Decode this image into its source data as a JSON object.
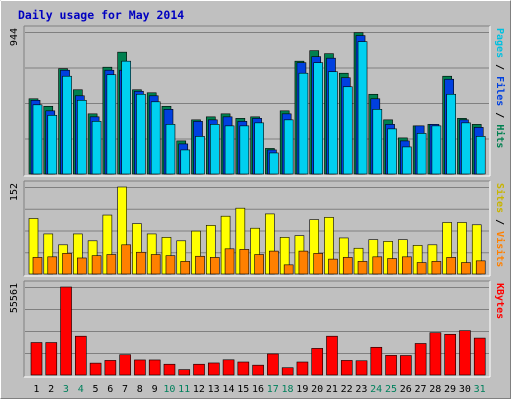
{
  "title": "Daily usage for May 2014",
  "colors": {
    "background": "#c0c0c0",
    "title": "#0000c0",
    "pages": "#00d0f0",
    "files": "#0040e0",
    "hits": "#008050",
    "visits": "#ff8000",
    "sites": "#ffff00",
    "kbytes": "#ff0000",
    "weekend": "#00805c",
    "weekday": "#000000"
  },
  "chart_data": [
    {
      "type": "bar",
      "panel": "hits-files-pages",
      "ymax_label": "944",
      "ylim": [
        0,
        944
      ],
      "axis_label_parts": [
        {
          "text": "Pages",
          "color": "#00c0e0"
        },
        {
          "text": " / ",
          "color": "#000000"
        },
        {
          "text": "Files",
          "color": "#0040e0"
        },
        {
          "text": " / ",
          "color": "#000000"
        },
        {
          "text": "Hits",
          "color": "#008050"
        }
      ],
      "categories": [
        "1",
        "2",
        "3",
        "4",
        "5",
        "6",
        "7",
        "8",
        "9",
        "10",
        "11",
        "12",
        "13",
        "14",
        "15",
        "16",
        "17",
        "18",
        "19",
        "20",
        "21",
        "22",
        "23",
        "24",
        "25",
        "26",
        "27",
        "28",
        "29",
        "30",
        "31"
      ],
      "series": [
        {
          "name": "Hits",
          "values": [
            500,
            450,
            700,
            560,
            400,
            710,
            810,
            560,
            540,
            450,
            220,
            360,
            380,
            400,
            370,
            380,
            170,
            420,
            750,
            820,
            800,
            670,
            940,
            530,
            360,
            240,
            320,
            330,
            650,
            370,
            330
          ]
        },
        {
          "name": "Files",
          "values": [
            490,
            420,
            690,
            520,
            380,
            690,
            690,
            550,
            520,
            430,
            200,
            350,
            360,
            380,
            350,
            370,
            160,
            400,
            740,
            780,
            770,
            640,
            920,
            500,
            330,
            220,
            320,
            330,
            630,
            360,
            310
          ]
        },
        {
          "name": "Pages",
          "values": [
            460,
            390,
            650,
            490,
            350,
            660,
            750,
            530,
            480,
            330,
            160,
            250,
            330,
            320,
            320,
            340,
            140,
            360,
            670,
            740,
            680,
            580,
            880,
            430,
            300,
            180,
            270,
            320,
            530,
            340,
            250
          ]
        }
      ]
    },
    {
      "type": "bar",
      "panel": "visits-sites",
      "ymax_label": "152",
      "ylim": [
        0,
        152
      ],
      "axis_label_parts": [
        {
          "text": "Sites",
          "color": "#c8b400"
        },
        {
          "text": " / ",
          "color": "#000000"
        },
        {
          "text": "Visits",
          "color": "#ff8000"
        }
      ],
      "categories": [
        "1",
        "2",
        "3",
        "4",
        "5",
        "6",
        "7",
        "8",
        "9",
        "10",
        "11",
        "12",
        "13",
        "14",
        "15",
        "16",
        "17",
        "18",
        "19",
        "20",
        "21",
        "22",
        "23",
        "24",
        "25",
        "26",
        "27",
        "28",
        "29",
        "30",
        "31"
      ],
      "series": [
        {
          "name": "Sites",
          "values": [
            97,
            70,
            51,
            70,
            58,
            103,
            152,
            88,
            70,
            64,
            58,
            75,
            85,
            101,
            115,
            80,
            105,
            64,
            67,
            95,
            99,
            63,
            45,
            60,
            57,
            60,
            50,
            51,
            90,
            90,
            86
          ]
        },
        {
          "name": "Visits",
          "values": [
            29,
            30,
            36,
            28,
            32,
            34,
            51,
            38,
            34,
            32,
            22,
            31,
            29,
            44,
            43,
            34,
            40,
            16,
            40,
            36,
            26,
            29,
            22,
            30,
            27,
            30,
            20,
            22,
            29,
            20,
            23
          ]
        }
      ]
    },
    {
      "type": "bar",
      "panel": "kbytes",
      "ymax_label": "55561",
      "ylim": [
        0,
        55561
      ],
      "axis_label_parts": [
        {
          "text": "KBytes",
          "color": "#ff0000"
        }
      ],
      "categories": [
        "1",
        "2",
        "3",
        "4",
        "5",
        "6",
        "7",
        "8",
        "9",
        "10",
        "11",
        "12",
        "13",
        "14",
        "15",
        "16",
        "17",
        "18",
        "19",
        "20",
        "21",
        "22",
        "23",
        "24",
        "25",
        "26",
        "27",
        "28",
        "29",
        "30",
        "31"
      ],
      "series": [
        {
          "name": "KBytes",
          "values": [
            20500,
            20500,
            55561,
            24500,
            7500,
            9200,
            12800,
            9500,
            9500,
            6800,
            3400,
            6800,
            7600,
            9600,
            8200,
            6200,
            13300,
            4600,
            8200,
            16800,
            24500,
            9200,
            9000,
            17500,
            12400,
            12300,
            19900,
            26700,
            25700,
            28000,
            23300
          ]
        }
      ]
    }
  ],
  "x_labels": [
    "1",
    "2",
    "3",
    "4",
    "5",
    "6",
    "7",
    "8",
    "9",
    "10",
    "11",
    "12",
    "13",
    "14",
    "15",
    "16",
    "17",
    "18",
    "19",
    "20",
    "21",
    "22",
    "23",
    "24",
    "25",
    "26",
    "27",
    "28",
    "29",
    "30",
    "31"
  ],
  "weekend_days": [
    "3",
    "4",
    "10",
    "11",
    "17",
    "18",
    "24",
    "25",
    "31"
  ]
}
